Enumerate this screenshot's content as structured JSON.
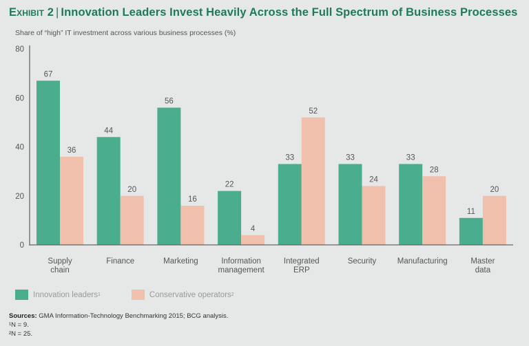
{
  "header": {
    "exhibit": "Exhibit 2",
    "title": "Innovation Leaders Invest Heavily Across the Full Spectrum of Business Processes"
  },
  "colors": {
    "title": "#1d7a5b",
    "innovation_leaders": "#4aad8e",
    "conservative_operators": "#f0c0ad",
    "background": "#e6e7e7",
    "axis": "#666666"
  },
  "legend": {
    "items": [
      {
        "label": "Innovation leaders",
        "sup": "1"
      },
      {
        "label": "Conservative operators",
        "sup": "2"
      }
    ]
  },
  "notes": {
    "sources_label": "Sources:",
    "sources_text": "GMA Information-Technology Benchmarking 2015; BCG analysis.",
    "footnote1": "¹N = 9.",
    "footnote2": "²N = 25."
  },
  "chart_data": {
    "type": "bar",
    "title": "Innovation Leaders Invest Heavily Across the Full Spectrum of Business Processes",
    "subtitle": "Share of “high” IT investment across various business processes (%)",
    "xlabel": "",
    "ylabel": "Share of “high” IT investment across various business processes (%)",
    "ylim": [
      0,
      80
    ],
    "yticks": [
      0,
      20,
      40,
      60,
      80
    ],
    "grid": false,
    "legend_position": "bottom-left",
    "categories": [
      [
        "Supply",
        "chain"
      ],
      [
        "Finance"
      ],
      [
        "Marketing"
      ],
      [
        "Information",
        "management"
      ],
      [
        "Integrated",
        "ERP"
      ],
      [
        "Security"
      ],
      [
        "Manufacturing"
      ],
      [
        "Master",
        "data"
      ]
    ],
    "series": [
      {
        "name": "Innovation leaders",
        "values": [
          67,
          44,
          56,
          22,
          33,
          33,
          33,
          11
        ]
      },
      {
        "name": "Conservative operators",
        "values": [
          36,
          20,
          16,
          4,
          52,
          24,
          28,
          20
        ]
      }
    ]
  }
}
